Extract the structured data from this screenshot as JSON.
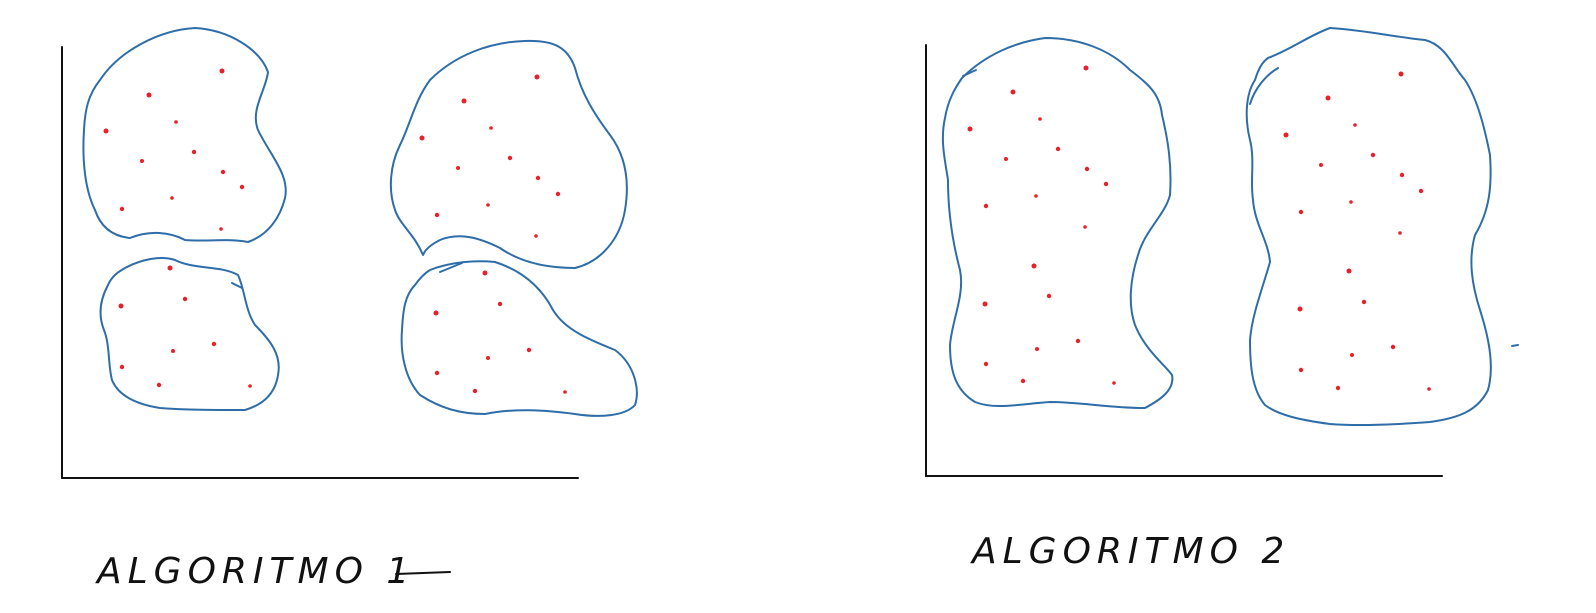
{
  "colors": {
    "outline": "#2e6da8",
    "point": "#e8202a",
    "ink": "#111111"
  },
  "panels": [
    {
      "caption": "ALGORITMO 1"
    },
    {
      "caption": "ALGORITMO 2"
    }
  ]
}
